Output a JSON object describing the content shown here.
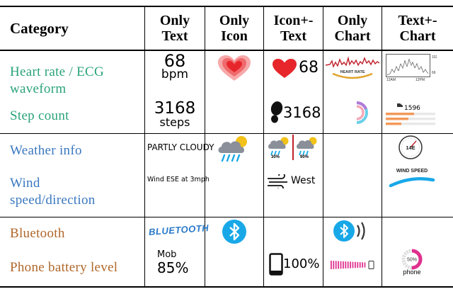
{
  "headers": {
    "category": "Category",
    "only_text": [
      "Only",
      "Text"
    ],
    "only_icon": [
      "Only",
      "Icon"
    ],
    "icon_text": [
      "Icon+-",
      "Text"
    ],
    "only_chart": [
      "Only",
      "Chart"
    ],
    "text_chart": [
      "Text+-",
      "Chart"
    ]
  },
  "rows": {
    "heart": {
      "category": [
        "Heart rate / ECG",
        "waveform"
      ],
      "only_text_value": "68",
      "only_text_unit": "bpm",
      "icon_text_value": "68",
      "chart_label": "HEART RATE",
      "text_chart_ticks": [
        "102",
        "66",
        "12AM",
        "12PM"
      ]
    },
    "step": {
      "category": "Step count",
      "only_text_value": "3168",
      "only_text_unit": "steps",
      "icon_text_value": "3168",
      "text_chart_value": "1596"
    },
    "weather": {
      "category": "Weather info",
      "only_text_value": "PARTLY CLOUDY",
      "icon_text_pct_1": "30%",
      "icon_text_pct_2": "90%"
    },
    "wind": {
      "category": [
        "Wind",
        "speed/direction"
      ],
      "only_text_value": "Wind ESE at 3mph",
      "icon_text_value": "West",
      "gauge_value": "14E",
      "text_chart_label": "WIND SPEED"
    },
    "bluetooth": {
      "category": "Bluetooth",
      "only_text_value": "BLUETOOTH"
    },
    "battery": {
      "category": "Phone battery level",
      "only_text_label": "Mob",
      "only_text_value": "85%",
      "icon_text_value": "100%",
      "text_chart_value": "50%",
      "text_chart_label": "phone"
    }
  },
  "colors": {
    "health": "#2aa37a",
    "weather": "#3a78c0",
    "device": "#b0672a",
    "heart_red": "#e6262b",
    "bluetooth": "#18a8e8",
    "battery_magenta": "#e0308f"
  }
}
